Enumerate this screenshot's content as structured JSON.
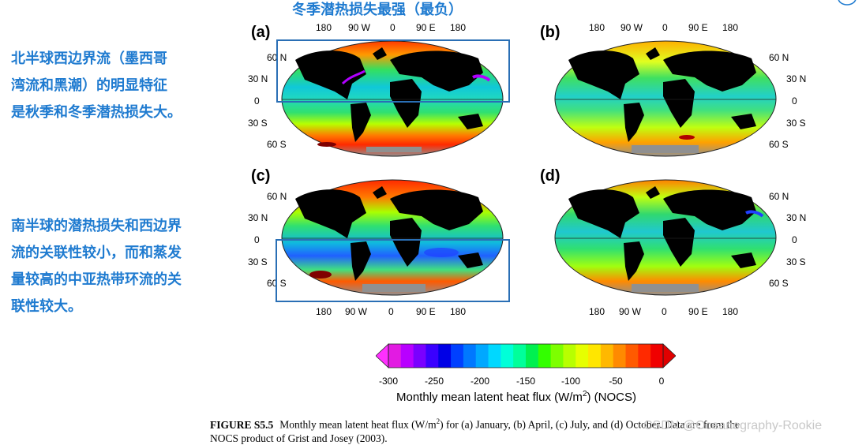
{
  "top_title": "冬季潜热损失最强（最负）",
  "left_notes": {
    "note1": "北半球西边界流（墨西哥\n湾流和黑潮）的明显特征\n是秋季和冬季潜热损失大。",
    "note2": "南半球的潜热损失和西边界\n流的关联性较小，而和蒸发\n量较高的中亚热带环流的关\n联性较大。"
  },
  "panels": [
    {
      "label": "(a)",
      "month": "Jan."
    },
    {
      "label": "(b)",
      "month": "April"
    },
    {
      "label": "(c)",
      "month": "July"
    },
    {
      "label": "(d)",
      "month": "Oct."
    }
  ],
  "lon_ticks": [
    "180",
    "90 W",
    "0",
    "90 E",
    "180"
  ],
  "lat_ticks": [
    "60 N",
    "30 N",
    "0",
    "30 S",
    "60 S"
  ],
  "colorbar": {
    "ticks": [
      "-300",
      "-250",
      "-200",
      "-150",
      "-100",
      "-50",
      "0"
    ],
    "title_prefix": "Monthly mean latent heat flux (W/m",
    "title_sup": "2",
    "title_suffix": ") (NOCS)",
    "colors": [
      "#e21be2",
      "#b800ff",
      "#7a00ff",
      "#3a00ff",
      "#0000e6",
      "#0040ff",
      "#0078ff",
      "#00a8ff",
      "#00d8ff",
      "#00ffd8",
      "#00ff9a",
      "#00f050",
      "#33ff00",
      "#7dff00",
      "#b8ff00",
      "#e6ff00",
      "#ffe600",
      "#ffb800",
      "#ff8a00",
      "#ff5a00",
      "#ff2a00",
      "#f00000"
    ],
    "arrow_low": "#ff30ff",
    "arrow_high": "#e00000"
  },
  "caption": {
    "label": "FIGURE S5.5",
    "line1": "Monthly mean latent heat flux (W/m",
    "sup": "2",
    "line1b": ") for (a) January, (b) April, (c) July, and (d) October. Data are from the",
    "line2": "NOCS product of Grist and Josey (2003)."
  },
  "watermark": "CSDN @Oceanography-Rookie"
}
